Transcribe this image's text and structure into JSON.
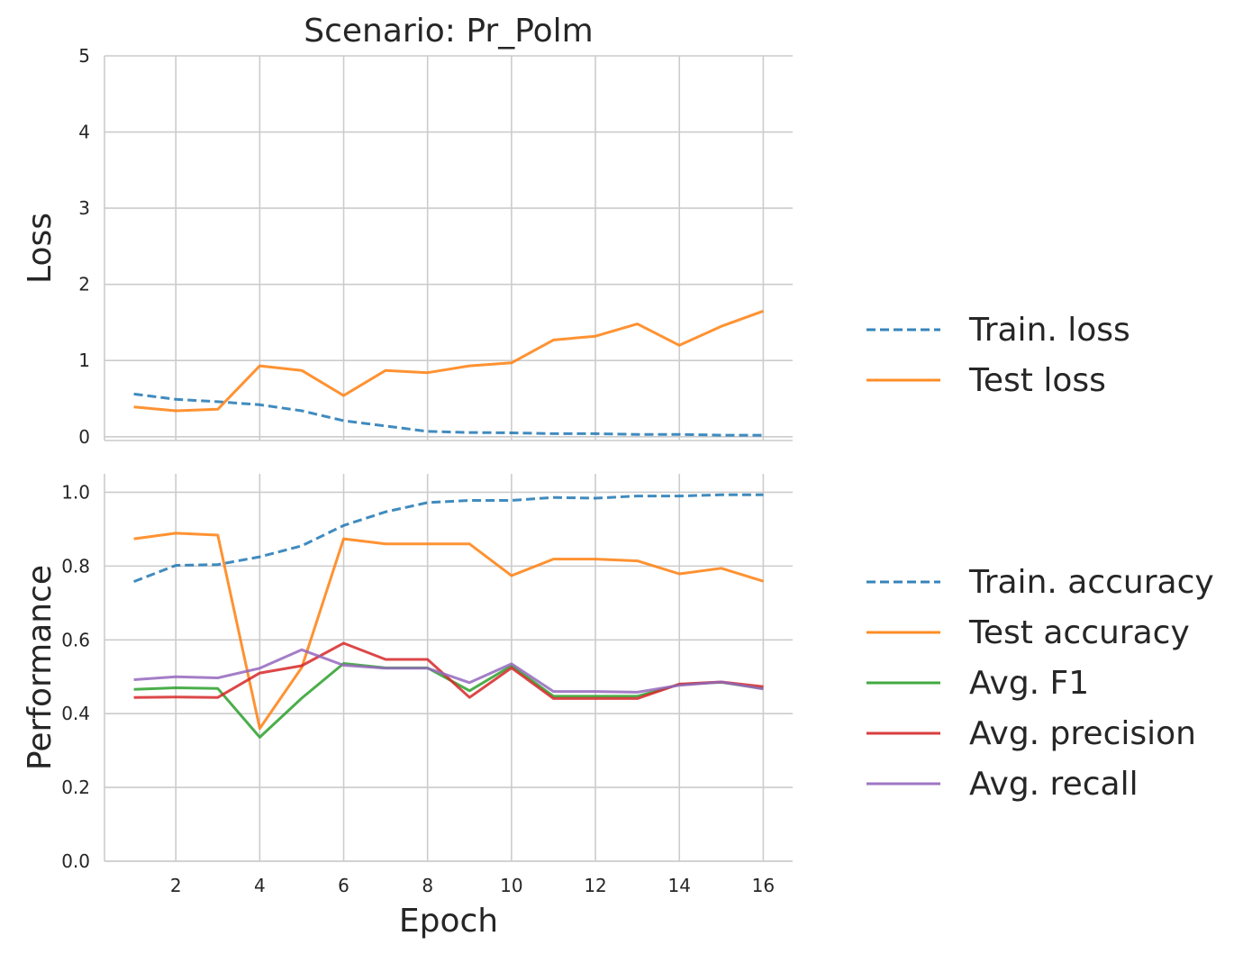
{
  "chart_data": [
    {
      "type": "line",
      "title": "Scenario: Pr_Polm",
      "xlabel": "",
      "ylabel": "Loss",
      "x": [
        1,
        2,
        3,
        4,
        5,
        6,
        7,
        8,
        9,
        10,
        11,
        12,
        13,
        14,
        15,
        16
      ],
      "xlim": [
        0.3,
        16.7
      ],
      "ylim": [
        -0.05,
        5
      ],
      "yticks": [
        0,
        1,
        2,
        3,
        4,
        5
      ],
      "yticklabels": [
        "0",
        "1",
        "2",
        "3",
        "4",
        "5"
      ],
      "xticks": [
        2,
        4,
        6,
        8,
        10,
        12,
        14,
        16
      ],
      "xticklabels": [],
      "grid": true,
      "legend_position": "right",
      "series": [
        {
          "name": "Train. loss",
          "color": "#1f77b4",
          "dashed": true,
          "values": [
            0.56,
            0.49,
            0.46,
            0.42,
            0.34,
            0.21,
            0.14,
            0.07,
            0.055,
            0.05,
            0.04,
            0.04,
            0.03,
            0.03,
            0.02,
            0.02
          ]
        },
        {
          "name": "Test loss",
          "color": "#ff7f0e",
          "dashed": false,
          "values": [
            0.39,
            0.34,
            0.36,
            0.93,
            0.87,
            0.54,
            0.87,
            0.84,
            0.93,
            0.97,
            1.27,
            1.32,
            1.48,
            1.2,
            1.45,
            1.65
          ]
        }
      ]
    },
    {
      "type": "line",
      "title": "",
      "xlabel": "Epoch",
      "ylabel": "Performance",
      "x": [
        1,
        2,
        3,
        4,
        5,
        6,
        7,
        8,
        9,
        10,
        11,
        12,
        13,
        14,
        15,
        16
      ],
      "xlim": [
        0.3,
        16.7
      ],
      "ylim": [
        0,
        1.05
      ],
      "yticks": [
        0,
        0.2,
        0.4,
        0.6,
        0.8,
        1.0
      ],
      "yticklabels": [
        "0.0",
        "0.2",
        "0.4",
        "0.6",
        "0.8",
        "1.0"
      ],
      "xticks": [
        2,
        4,
        6,
        8,
        10,
        12,
        14,
        16
      ],
      "xticklabels": [
        "2",
        "4",
        "6",
        "8",
        "10",
        "12",
        "14",
        "16"
      ],
      "grid": true,
      "legend_position": "right",
      "series": [
        {
          "name": "Train. accuracy",
          "color": "#1f77b4",
          "dashed": true,
          "values": [
            0.758,
            0.802,
            0.804,
            0.825,
            0.855,
            0.91,
            0.947,
            0.972,
            0.978,
            0.978,
            0.986,
            0.984,
            0.99,
            0.99,
            0.993,
            0.993
          ]
        },
        {
          "name": "Test accuracy",
          "color": "#ff7f0e",
          "dashed": false,
          "values": [
            0.874,
            0.889,
            0.884,
            0.36,
            0.525,
            0.874,
            0.86,
            0.86,
            0.86,
            0.774,
            0.819,
            0.819,
            0.814,
            0.779,
            0.794,
            0.759
          ]
        },
        {
          "name": "Avg. F1",
          "color": "#2ca02c",
          "dashed": false,
          "values": [
            0.466,
            0.47,
            0.468,
            0.336,
            0.442,
            0.536,
            0.524,
            0.524,
            0.462,
            0.53,
            0.447,
            0.447,
            0.447,
            0.479,
            0.485,
            0.468
          ]
        },
        {
          "name": "Avg. precision",
          "color": "#d62728",
          "dashed": false,
          "values": [
            0.444,
            0.445,
            0.444,
            0.51,
            0.53,
            0.591,
            0.547,
            0.547,
            0.444,
            0.524,
            0.441,
            0.441,
            0.441,
            0.48,
            0.486,
            0.473
          ]
        },
        {
          "name": "Avg. recall",
          "color": "#9467bd",
          "dashed": false,
          "values": [
            0.492,
            0.5,
            0.497,
            0.523,
            0.573,
            0.531,
            0.523,
            0.523,
            0.484,
            0.535,
            0.46,
            0.46,
            0.458,
            0.477,
            0.486,
            0.467
          ]
        }
      ]
    }
  ]
}
